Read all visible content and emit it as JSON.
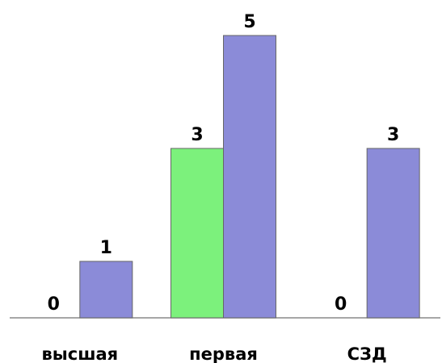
{
  "chart_data": {
    "type": "bar",
    "categories": [
      "высшая",
      "первая",
      "СЗД"
    ],
    "series": [
      {
        "values": [
          0,
          3,
          0
        ],
        "color": "#7cf17c"
      },
      {
        "values": [
          1,
          5,
          3
        ],
        "color": "#8b8bd8"
      }
    ],
    "ylim": [
      0,
      5
    ],
    "grid": false,
    "legend": "none",
    "data_labels": true,
    "colors": {
      "bar_border": "#666666",
      "axis": "#8a8a8a"
    }
  }
}
